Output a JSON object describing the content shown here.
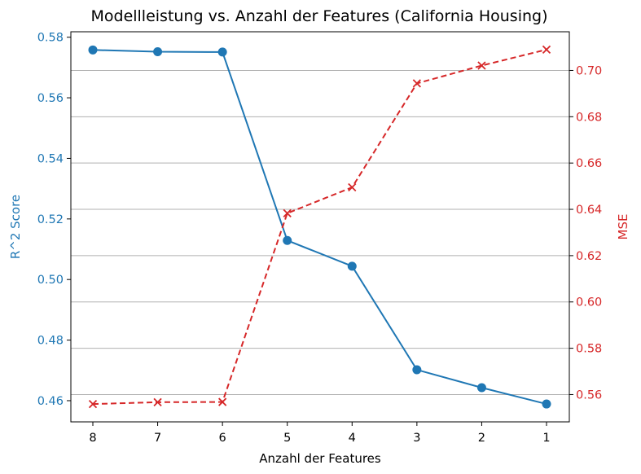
{
  "chart_data": {
    "type": "line",
    "title": "Modellleistung vs. Anzahl der Features (California Housing)",
    "xlabel": "Anzahl der Features",
    "x": [
      8,
      7,
      6,
      5,
      4,
      3,
      2,
      1
    ],
    "x_tick_labels": [
      "8",
      "7",
      "6",
      "5",
      "4",
      "3",
      "2",
      "1"
    ],
    "x_inverted": true,
    "series": [
      {
        "name": "R^2 Score",
        "axis": "left",
        "color": "#1f77b4",
        "marker": "o",
        "linestyle": "solid",
        "values": [
          0.5758,
          0.5752,
          0.5751,
          0.5129,
          0.5044,
          0.4702,
          0.4643,
          0.4589
        ]
      },
      {
        "name": "MSE",
        "axis": "right",
        "color": "#d62728",
        "marker": "x",
        "linestyle": "dashed",
        "values": [
          0.5559,
          0.5567,
          0.5568,
          0.6383,
          0.6495,
          0.6944,
          0.7021,
          0.709
        ]
      }
    ],
    "left_axis": {
      "label": "R^2 Score",
      "color": "#1f77b4",
      "ylim": [
        0.453,
        0.5818
      ],
      "ticks": [
        0.46,
        0.48,
        0.5,
        0.52,
        0.54,
        0.56,
        0.58
      ],
      "tick_labels": [
        "0.46",
        "0.48",
        "0.50",
        "0.52",
        "0.54",
        "0.56",
        "0.58"
      ]
    },
    "right_axis": {
      "label": "MSE",
      "color": "#d62728",
      "ylim": [
        0.5482,
        0.7167
      ],
      "ticks": [
        0.56,
        0.58,
        0.6,
        0.62,
        0.64,
        0.66,
        0.68,
        0.7
      ],
      "tick_labels": [
        "0.56",
        "0.58",
        "0.60",
        "0.62",
        "0.64",
        "0.66",
        "0.68",
        "0.70"
      ],
      "grid": true
    },
    "grid": "horizontal lines at right-axis ticks"
  }
}
